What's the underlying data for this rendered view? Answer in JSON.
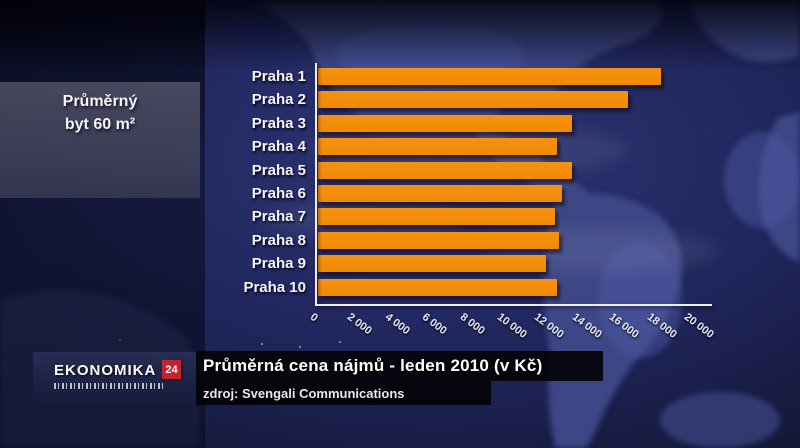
{
  "channel_bug": {
    "name": "EKONOMIKA",
    "number": "24"
  },
  "info_panel": {
    "line1": "Průměrný",
    "line2": "byt 60 m²"
  },
  "banner": {
    "title": "Průměrná cena nájmů - leden 2010 (v Kč)",
    "source": "zdroj: Svengali Communications"
  },
  "chart_data": {
    "type": "bar",
    "orientation": "horizontal",
    "title": "Průměrná cena nájmů - leden 2010 (v Kč)",
    "subtitle": "Průměrný byt 60 m²",
    "unit": "Kč",
    "categories": [
      "Praha 1",
      "Praha 2",
      "Praha 3",
      "Praha 4",
      "Praha 5",
      "Praha 6",
      "Praha 7",
      "Praha 8",
      "Praha 9",
      "Praha 10"
    ],
    "values": [
      18400,
      16600,
      13600,
      12800,
      13600,
      13100,
      12700,
      12900,
      12200,
      12800
    ],
    "x_tick_labels": [
      "0",
      "2 000",
      "4 000",
      "6 000",
      "8 000",
      "10 000",
      "12 000",
      "14 000",
      "16 000",
      "18 000",
      "20 000"
    ],
    "xlim": [
      0,
      20000
    ],
    "grid": false,
    "legend_position": "none",
    "bar_color": "#f6920f",
    "background_color": "#1d2456",
    "text_color": "#f5f5fa"
  }
}
